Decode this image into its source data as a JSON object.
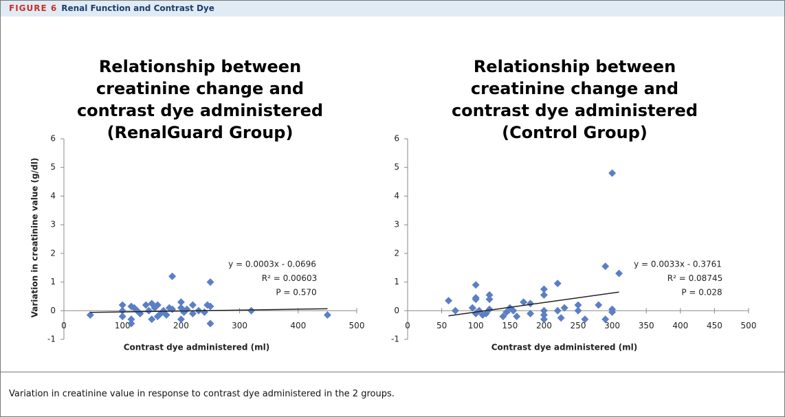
{
  "figure": {
    "label": "FIGURE 6",
    "title": "Renal Function and Contrast Dye"
  },
  "caption": "Variation in creatinine value in response to contrast dye administered in the 2 groups.",
  "chart_data": [
    {
      "type": "scatter",
      "title": "Relationship between creatinine change and contrast dye administered (RenalGuard Group)",
      "y_label": "Variation in creatinine value (g/dl)",
      "x_label": "Contrast dye administered (ml)",
      "color": "#5b7fc4",
      "x": [
        45,
        100,
        100,
        100,
        115,
        115,
        115,
        120,
        125,
        130,
        140,
        145,
        150,
        150,
        155,
        160,
        160,
        165,
        170,
        175,
        180,
        185,
        185,
        200,
        200,
        200,
        205,
        210,
        220,
        220,
        230,
        240,
        245,
        250,
        250,
        250,
        320,
        450
      ],
      "values": [
        -0.15,
        0.2,
        -0.2,
        0,
        0.15,
        -0.3,
        -0.45,
        0.1,
        0,
        -0.1,
        0.2,
        0,
        0.25,
        -0.3,
        0.1,
        0.2,
        -0.2,
        -0.1,
        0,
        -0.15,
        0.1,
        1.2,
        0.05,
        0.3,
        0.1,
        -0.3,
        -0.05,
        0.05,
        0.2,
        -0.1,
        0,
        -0.05,
        0.2,
        1.0,
        -0.45,
        0.15,
        0,
        -0.15
      ],
      "trendline": {
        "x": [
          45,
          450
        ],
        "values": [
          -0.06,
          0.07
        ]
      },
      "annotations": [
        "y = 0.0003x - 0.0696",
        "R² = 0.00603",
        "P = 0.570"
      ],
      "xlim": [
        0,
        500
      ],
      "xticks": [
        0,
        100,
        200,
        300,
        400,
        500
      ],
      "ylim": [
        -1,
        6
      ],
      "yticks": [
        -1,
        0,
        1,
        2,
        3,
        4,
        5,
        6
      ]
    },
    {
      "type": "scatter",
      "title": "Relationship between creatinine change and contrast dye administered (Control Group)",
      "x_label": "Contrast dye administered (ml)",
      "color": "#5b7fc4",
      "x": [
        60,
        70,
        95,
        100,
        100,
        100,
        100,
        105,
        110,
        115,
        120,
        120,
        120,
        140,
        145,
        150,
        155,
        160,
        170,
        180,
        180,
        200,
        200,
        200,
        200,
        200,
        220,
        220,
        225,
        230,
        250,
        250,
        260,
        280,
        290,
        290,
        300,
        300,
        300,
        310
      ],
      "values": [
        0.35,
        0,
        0.1,
        0.9,
        0.45,
        0.4,
        -0.1,
        0,
        -0.15,
        -0.1,
        0.55,
        0.4,
        0.05,
        -0.2,
        -0.05,
        0.1,
        0,
        -0.2,
        0.3,
        0.25,
        -0.1,
        0.75,
        0.55,
        0,
        -0.15,
        -0.3,
        0.95,
        0,
        -0.25,
        0.1,
        0.2,
        0,
        -0.3,
        0.2,
        1.55,
        -0.3,
        4.8,
        0.05,
        -0.05,
        1.3
      ],
      "trendline": {
        "x": [
          60,
          310
        ],
        "values": [
          -0.18,
          0.65
        ]
      },
      "annotations": [
        "y = 0.0033x - 0.3761",
        "R² = 0.08745",
        "P = 0.028"
      ],
      "xlim": [
        0,
        500
      ],
      "xticks": [
        0,
        50,
        100,
        150,
        200,
        250,
        300,
        350,
        400,
        450,
        500
      ],
      "ylim": [
        -1,
        6
      ],
      "yticks": [
        -1,
        0,
        1,
        2,
        3,
        4,
        5,
        6
      ]
    }
  ]
}
